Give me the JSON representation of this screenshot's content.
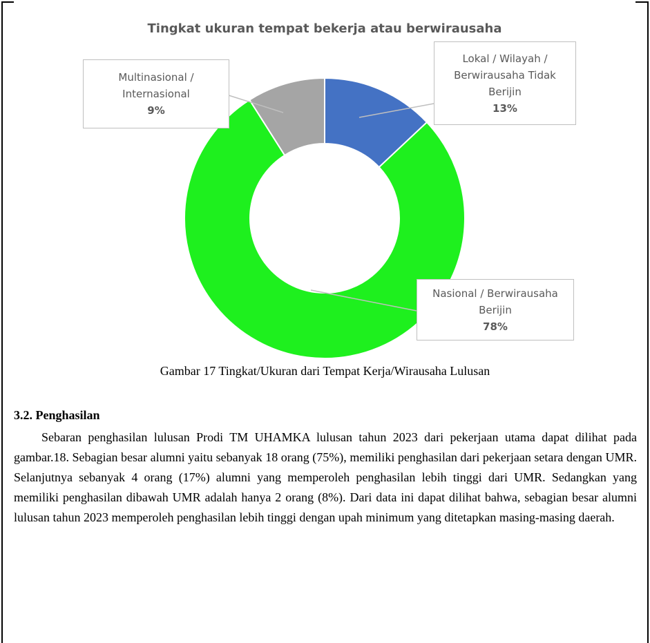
{
  "chart_data": {
    "type": "donut",
    "title": "Tingkat ukuran tempat bekerja atau berwirausaha",
    "categories": [
      "Lokal / Wilayah / Berwirausaha Tidak Berijin",
      "Nasional / Berwirausaha Berijin",
      "Multinasional / Internasional"
    ],
    "values": [
      13,
      78,
      9
    ],
    "value_labels": [
      "13%",
      "78%",
      "9%"
    ],
    "colors": [
      "#4472c4",
      "#1ef01e",
      "#a5a5a5"
    ]
  },
  "caption": "Gambar 17  Tingkat/Ukuran dari Tempat Kerja/Wirausaha Lulusan",
  "section": {
    "heading": "3.2.  Penghasilan",
    "paragraph": "Sebaran penghasilan lulusan Prodi TM UHAMKA lulusan tahun 2023 dari pekerjaan utama dapat dilihat pada gambar.18. Sebagian besar alumni yaitu sebanyak 18 orang (75%), memiliki penghasilan dari pekerjaan setara dengan UMR. Selanjutnya sebanyak 4 orang (17%) alumni yang memperoleh penghasilan lebih tinggi dari UMR. Sedangkan yang memiliki penghasilan dibawah UMR adalah hanya 2 orang (8%). Dari data ini dapat dilihat bahwa, sebagian besar alumni lulusan tahun 2023 memperoleh penghasilan lebih tinggi dengan upah minimum yang ditetapkan masing-masing daerah."
  }
}
